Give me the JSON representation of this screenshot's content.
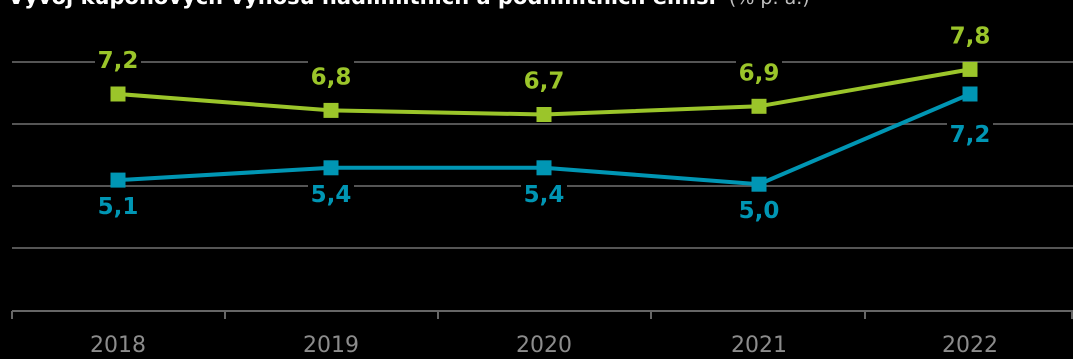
{
  "chart_data": {
    "type": "line",
    "title": "Vývoj kupónových výnosů nadlimitních a podlimitních emisí",
    "title_unit": "(% p. a.)",
    "categories": [
      "2018",
      "2019",
      "2020",
      "2021",
      "2022"
    ],
    "series": [
      {
        "values": [
          7.2,
          6.8,
          6.7,
          6.9,
          7.8
        ],
        "labels": [
          "7,2",
          "6,8",
          "6,7",
          "6,9",
          "7,8"
        ],
        "color": "#9bc52a",
        "label_position": "above"
      },
      {
        "values": [
          5.1,
          5.4,
          5.4,
          5.0,
          7.2
        ],
        "labels": [
          "5,1",
          "5,4",
          "5,4",
          "5,0",
          "7,2"
        ],
        "color": "#0096b4",
        "label_position": "below"
      }
    ],
    "grid": true,
    "gridline_color": "#555555",
    "legend": "none"
  }
}
